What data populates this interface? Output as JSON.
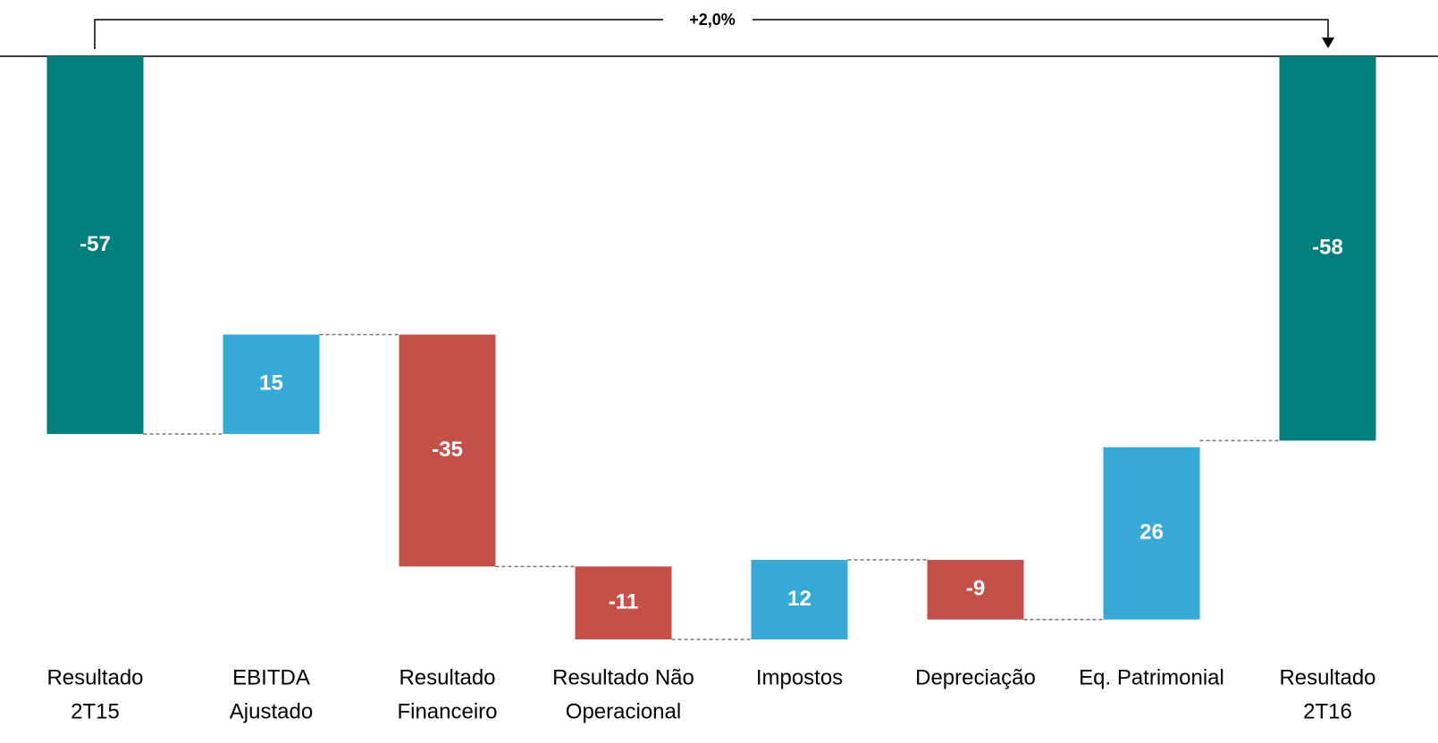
{
  "chart_data": {
    "type": "waterfall",
    "annotation": "+2,0%",
    "categories": [
      [
        "Resultado",
        "2T15"
      ],
      [
        "EBITDA",
        "Ajustado"
      ],
      [
        "Resultado",
        "Financeiro"
      ],
      [
        "Resultado Não",
        "Operacional"
      ],
      [
        "Impostos"
      ],
      [
        "Depreciação"
      ],
      [
        "Eq. Patrimonial"
      ],
      [
        "Resultado",
        "2T16"
      ]
    ],
    "values": [
      -57,
      15,
      -35,
      -11,
      12,
      -9,
      26,
      -58
    ],
    "totals": [
      true,
      false,
      false,
      false,
      false,
      false,
      false,
      true
    ],
    "colors": {
      "total": "#007f7d",
      "increase": "#36a9d7",
      "decrease": "#c4504a"
    },
    "ylim": [
      -100,
      0
    ]
  }
}
